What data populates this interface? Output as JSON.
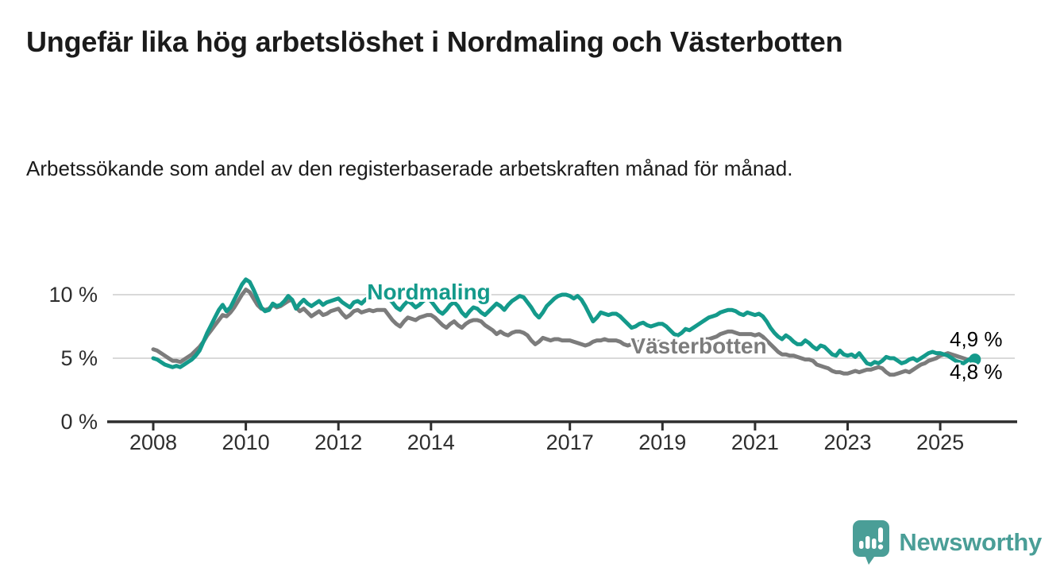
{
  "header": {
    "title": "Ungefär lika hög arbetslöshet i Nordmaling och Västerbotten",
    "subtitle": "Arbetssökande som andel av den registerbaserade arbetskraften månad för månad."
  },
  "chart_data": {
    "type": "line",
    "unit": "%",
    "frequency": "monthly",
    "x_start": "2008-01",
    "x_end": "2025-10",
    "x_tick_years": [
      2008,
      2010,
      2012,
      2014,
      2017,
      2019,
      2021,
      2023,
      2025
    ],
    "x_tick_labels": [
      "2008",
      "2010",
      "2012",
      "2014",
      "2017",
      "2019",
      "2021",
      "2023",
      "2025"
    ],
    "y_ticks": [
      {
        "value": 0,
        "label": "0 %"
      },
      {
        "value": 5,
        "label": "5 %"
      },
      {
        "value": 10,
        "label": "10 %"
      }
    ],
    "ylim": [
      0,
      12.5
    ],
    "grid": "horizontal",
    "legend_position": "inline-labels",
    "series": [
      {
        "name": "Nordmaling",
        "color": "#149a8b",
        "end_label": "4,9 %",
        "end_value": 4.9,
        "end_dot": true,
        "values": [
          5.0,
          4.9,
          4.7,
          4.5,
          4.4,
          4.3,
          4.4,
          4.3,
          4.5,
          4.7,
          4.9,
          5.2,
          5.6,
          6.3,
          7.0,
          7.6,
          8.2,
          8.8,
          9.2,
          8.7,
          9.0,
          9.6,
          10.2,
          10.8,
          11.2,
          11.0,
          10.4,
          9.7,
          9.0,
          8.7,
          8.8,
          9.3,
          9.1,
          9.2,
          9.5,
          9.9,
          9.6,
          8.9,
          9.3,
          9.6,
          9.3,
          9.1,
          9.3,
          9.5,
          9.2,
          9.4,
          9.5,
          9.6,
          9.7,
          9.4,
          9.2,
          9.0,
          9.4,
          9.5,
          9.3,
          9.6,
          9.8,
          9.9,
          10.0,
          10.1,
          10.0,
          9.7,
          9.4,
          9.0,
          8.8,
          9.2,
          9.5,
          9.3,
          9.0,
          9.2,
          9.5,
          9.7,
          9.5,
          9.1,
          8.7,
          8.5,
          8.8,
          9.2,
          9.4,
          9.1,
          8.6,
          8.3,
          8.7,
          9.0,
          8.9,
          8.6,
          8.4,
          8.7,
          9.0,
          9.3,
          9.1,
          8.8,
          9.2,
          9.5,
          9.7,
          9.9,
          9.8,
          9.4,
          9.0,
          8.5,
          8.2,
          8.6,
          9.1,
          9.4,
          9.7,
          9.9,
          10.0,
          10.0,
          9.9,
          9.7,
          9.9,
          9.6,
          9.1,
          8.5,
          7.9,
          8.2,
          8.6,
          8.5,
          8.4,
          8.5,
          8.5,
          8.3,
          8.0,
          7.7,
          7.4,
          7.5,
          7.7,
          7.8,
          7.6,
          7.5,
          7.6,
          7.7,
          7.7,
          7.5,
          7.2,
          6.9,
          6.8,
          7.0,
          7.3,
          7.2,
          7.4,
          7.6,
          7.8,
          8.0,
          8.2,
          8.3,
          8.4,
          8.6,
          8.7,
          8.8,
          8.8,
          8.7,
          8.5,
          8.4,
          8.6,
          8.5,
          8.4,
          8.5,
          8.3,
          7.9,
          7.4,
          7.0,
          6.7,
          6.5,
          6.8,
          6.6,
          6.3,
          6.1,
          6.1,
          6.4,
          6.2,
          5.9,
          5.7,
          6.0,
          5.9,
          5.6,
          5.3,
          5.2,
          5.6,
          5.3,
          5.2,
          5.3,
          5.1,
          5.4,
          5.0,
          4.6,
          4.5,
          4.7,
          4.6,
          4.8,
          5.1,
          5.0,
          5.0,
          4.8,
          4.6,
          4.7,
          4.9,
          5.0,
          4.8,
          5.0,
          5.2,
          5.4,
          5.5,
          5.4,
          5.4,
          5.3,
          5.2,
          5.0,
          4.8,
          4.7,
          4.6,
          4.8,
          5.0,
          4.9
        ]
      },
      {
        "name": "Västerbotten",
        "color": "#7c7c7c",
        "end_label": "4,8 %",
        "end_value": 4.8,
        "end_dot": false,
        "values": [
          5.7,
          5.6,
          5.4,
          5.2,
          5.0,
          4.8,
          4.8,
          4.7,
          4.9,
          5.1,
          5.3,
          5.6,
          5.9,
          6.3,
          6.8,
          7.2,
          7.6,
          8.0,
          8.4,
          8.3,
          8.6,
          9.0,
          9.5,
          10.0,
          10.4,
          10.2,
          9.7,
          9.2,
          8.9,
          8.8,
          8.9,
          9.2,
          9.0,
          9.1,
          9.3,
          9.5,
          9.6,
          9.0,
          8.7,
          8.9,
          8.6,
          8.3,
          8.5,
          8.7,
          8.4,
          8.5,
          8.7,
          8.8,
          8.9,
          8.5,
          8.2,
          8.4,
          8.7,
          8.8,
          8.6,
          8.7,
          8.8,
          8.7,
          8.8,
          8.8,
          8.8,
          8.4,
          8.0,
          7.7,
          7.5,
          7.9,
          8.2,
          8.1,
          8.0,
          8.2,
          8.3,
          8.4,
          8.4,
          8.2,
          7.9,
          7.6,
          7.4,
          7.7,
          7.9,
          7.6,
          7.4,
          7.7,
          7.9,
          8.0,
          8.0,
          7.9,
          7.6,
          7.4,
          7.2,
          6.9,
          7.1,
          6.9,
          6.8,
          7.0,
          7.1,
          7.1,
          7.0,
          6.8,
          6.4,
          6.1,
          6.3,
          6.6,
          6.5,
          6.4,
          6.5,
          6.5,
          6.4,
          6.4,
          6.4,
          6.3,
          6.2,
          6.1,
          6.0,
          6.1,
          6.3,
          6.4,
          6.4,
          6.5,
          6.4,
          6.4,
          6.4,
          6.3,
          6.1,
          6.0,
          6.1,
          6.2,
          6.3,
          6.2,
          6.1,
          6.2,
          6.3,
          6.3,
          6.3,
          6.2,
          6.0,
          5.9,
          6.0,
          6.1,
          6.2,
          6.2,
          6.3,
          6.3,
          6.4,
          6.5,
          6.5,
          6.6,
          6.7,
          6.9,
          7.0,
          7.1,
          7.1,
          7.0,
          6.9,
          6.9,
          6.9,
          6.9,
          6.8,
          6.9,
          6.7,
          6.4,
          6.1,
          5.8,
          5.5,
          5.3,
          5.3,
          5.2,
          5.2,
          5.1,
          5.0,
          4.9,
          4.9,
          4.8,
          4.5,
          4.4,
          4.3,
          4.2,
          4.0,
          3.9,
          3.9,
          3.8,
          3.8,
          3.9,
          4.0,
          3.9,
          4.0,
          4.1,
          4.1,
          4.2,
          4.3,
          4.2,
          3.9,
          3.7,
          3.7,
          3.8,
          3.9,
          4.0,
          3.9,
          4.1,
          4.3,
          4.5,
          4.6,
          4.8,
          4.9,
          5.0,
          5.2,
          5.3,
          5.4,
          5.3,
          5.2,
          5.1,
          5.0,
          4.9,
          4.9,
          4.8
        ]
      }
    ]
  },
  "branding": {
    "logo_text": "Newsworthy",
    "logo_color": "#4a9e97",
    "icon": "newsworthy-bubble-barchart-icon"
  }
}
